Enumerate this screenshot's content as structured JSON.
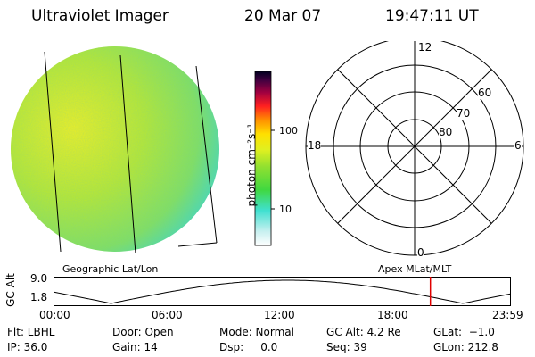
{
  "header": {
    "title": "Ultraviolet Imager",
    "date": "20 Mar 07",
    "time": "19:47:11 UT"
  },
  "colorbar": {
    "unit_label": "photon cm⁻²s⁻¹",
    "ticks": [
      "100",
      "10"
    ]
  },
  "polar_plot": {
    "mlt_labels": [
      "12",
      "18",
      "6",
      "0"
    ],
    "mlat_labels": [
      "60",
      "70",
      "80"
    ]
  },
  "orbit_panel": {
    "left_title": "Geographic Lat/Lon",
    "right_title": "Apex MLat/MLT",
    "y_axis_label": "GC Alt",
    "y_ticks": [
      "9.0",
      "1.8"
    ],
    "x_ticks": [
      "00:00",
      "06:00",
      "12:00",
      "18:00",
      "23:59"
    ],
    "current_time_marker_hours": 19.79,
    "marker_color": "#e00000"
  },
  "status": {
    "flt": "Flt: LBHL",
    "ip": "IP: 36.0",
    "door": "Door: Open",
    "gain": "Gain: 14",
    "mode": "Mode: Normal",
    "dsp": "Dsp:     0.0",
    "gc_alt": "GC Alt: 4.2 Re",
    "seq": "Seq: 39",
    "glat": "GLat:  −1.0",
    "glon": "GLon: 212.8"
  }
}
